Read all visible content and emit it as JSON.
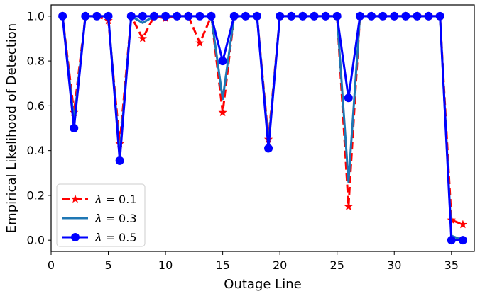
{
  "chart_data": {
    "type": "line",
    "title": "",
    "xlabel": "Outage Line",
    "ylabel": "Empirical Likelihood of Detection",
    "xlim": [
      0,
      37
    ],
    "ylim": [
      -0.05,
      1.05
    ],
    "xticks": [
      0,
      5,
      10,
      15,
      20,
      25,
      30,
      35
    ],
    "yticks": [
      0.0,
      0.2,
      0.4,
      0.6,
      0.8,
      1.0
    ],
    "xtick_labels": [
      "0",
      "5",
      "10",
      "15",
      "20",
      "25",
      "30",
      "35"
    ],
    "ytick_labels": [
      "0.0",
      "0.2",
      "0.4",
      "0.6",
      "0.8",
      "1.0"
    ],
    "grid": false,
    "legend_position": "lower-left",
    "x": [
      1,
      2,
      3,
      4,
      5,
      6,
      7,
      8,
      9,
      10,
      11,
      12,
      13,
      14,
      15,
      16,
      17,
      18,
      19,
      20,
      21,
      22,
      23,
      24,
      25,
      26,
      27,
      28,
      29,
      30,
      31,
      32,
      33,
      34,
      35,
      36
    ],
    "series": [
      {
        "name": "λ = 0.1",
        "legend_symbol": "λ",
        "legend_value": "= 0.1",
        "color": "#ff0000",
        "line_style": "dashed",
        "marker": "star",
        "values": [
          1.0,
          0.57,
          1.0,
          1.0,
          0.98,
          0.43,
          1.0,
          0.9,
          1.0,
          0.99,
          1.0,
          1.0,
          0.88,
          1.0,
          0.57,
          1.0,
          1.0,
          1.0,
          0.45,
          1.0,
          1.0,
          1.0,
          1.0,
          1.0,
          1.0,
          0.15,
          1.0,
          1.0,
          1.0,
          1.0,
          1.0,
          1.0,
          1.0,
          1.0,
          0.09,
          0.07
        ]
      },
      {
        "name": "λ = 0.3",
        "legend_symbol": "λ",
        "legend_value": "= 0.3",
        "color": "#1f77b4",
        "line_style": "solid",
        "marker": "none",
        "values": [
          1.0,
          0.53,
          1.0,
          1.0,
          1.0,
          0.38,
          1.0,
          0.97,
          1.0,
          1.0,
          1.0,
          1.0,
          1.0,
          1.0,
          0.63,
          1.0,
          1.0,
          1.0,
          0.43,
          1.0,
          1.0,
          1.0,
          1.0,
          1.0,
          1.0,
          0.26,
          1.0,
          1.0,
          1.0,
          1.0,
          1.0,
          1.0,
          1.0,
          1.0,
          0.02,
          0.0
        ]
      },
      {
        "name": "λ = 0.5",
        "legend_symbol": "λ",
        "legend_value": "= 0.5",
        "color": "#0000ff",
        "line_style": "solid",
        "marker": "circle",
        "values": [
          1.0,
          0.5,
          1.0,
          1.0,
          1.0,
          0.355,
          1.0,
          1.0,
          1.0,
          1.0,
          1.0,
          1.0,
          1.0,
          1.0,
          0.8,
          1.0,
          1.0,
          1.0,
          0.41,
          1.0,
          1.0,
          1.0,
          1.0,
          1.0,
          1.0,
          0.635,
          1.0,
          1.0,
          1.0,
          1.0,
          1.0,
          1.0,
          1.0,
          1.0,
          0.0,
          0.0
        ]
      }
    ]
  }
}
